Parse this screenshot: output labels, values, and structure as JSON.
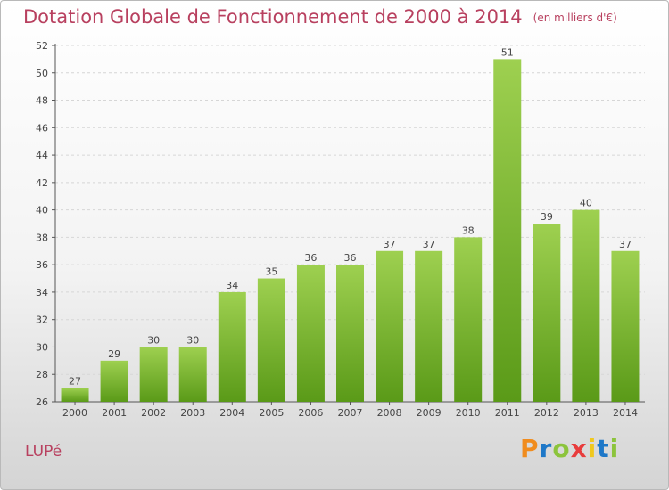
{
  "chart_data": {
    "type": "bar",
    "title": "Dotation Globale de Fonctionnement de 2000 à 2014",
    "subtitle": "(en milliers d'€)",
    "xlabel": "",
    "ylabel": "",
    "categories": [
      "2000",
      "2001",
      "2002",
      "2003",
      "2004",
      "2005",
      "2006",
      "2007",
      "2008",
      "2009",
      "2010",
      "2011",
      "2012",
      "2013",
      "2014"
    ],
    "values": [
      27,
      29,
      30,
      30,
      34,
      35,
      36,
      36,
      37,
      37,
      38,
      51,
      39,
      40,
      37
    ],
    "ylim": [
      26,
      52
    ],
    "yticks": [
      26,
      28,
      30,
      32,
      34,
      36,
      38,
      40,
      42,
      44,
      46,
      48,
      50,
      52
    ],
    "grid": "horizontal dashed"
  },
  "commune": "LUPé",
  "brand": {
    "letters": [
      "P",
      "r",
      "o",
      "x",
      "i",
      "t",
      "i"
    ],
    "colors": [
      "#f08c1e",
      "#1e78c8",
      "#8cc43c",
      "#e83c3c",
      "#f0c81e",
      "#1e78c8",
      "#8cc43c"
    ]
  },
  "colors": {
    "title": "#b8405f",
    "bar_light": "#9ed050",
    "bar_dark": "#5a9a18",
    "grid": "#d6d6d6"
  }
}
